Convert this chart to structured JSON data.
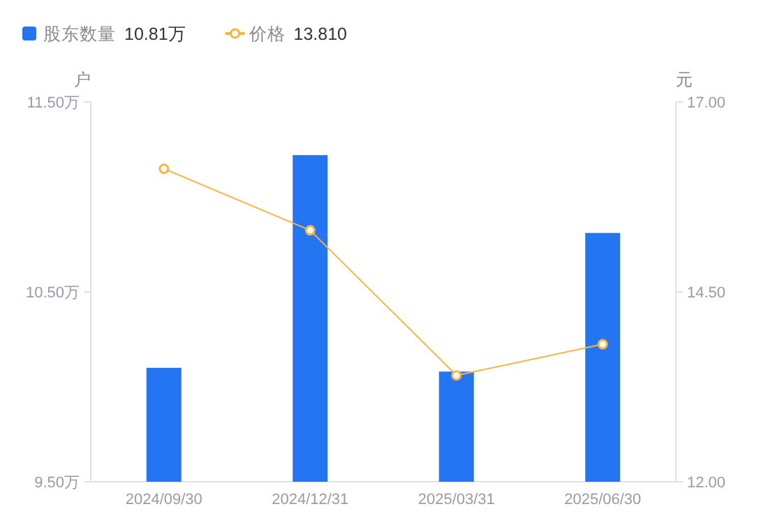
{
  "chart_data": {
    "type": "bar",
    "categories": [
      "2024/09/30",
      "2024/12/31",
      "2025/03/31",
      "2025/06/30"
    ],
    "series": [
      {
        "name": "股东数量",
        "color": "#2475f2",
        "values": [
          10.1,
          11.22,
          10.08,
          10.81
        ]
      },
      {
        "name": "价格",
        "type": "line",
        "axis": "y2",
        "color": "#fbb440",
        "values": [
          16.12,
          15.31,
          13.4,
          13.81
        ]
      }
    ],
    "annotations": [
      "10.81万",
      "13.810"
    ],
    "ylabel": "户",
    "y2label": "元",
    "ylim": [
      9.5,
      11.5
    ],
    "yticks": [
      {
        "value": 9.5,
        "label": "9.50万"
      },
      {
        "value": 10.5,
        "label": "10.50万"
      },
      {
        "value": 11.5,
        "label": "11.50万"
      }
    ],
    "y2lim": [
      12,
      17
    ],
    "y2ticks": [
      {
        "value": 12,
        "label": "12.00"
      },
      {
        "value": 14.5,
        "label": "14.50"
      },
      {
        "value": 17,
        "label": "17.00"
      }
    ],
    "legend": "top left",
    "marker": "circle",
    "line_style": "solid"
  }
}
